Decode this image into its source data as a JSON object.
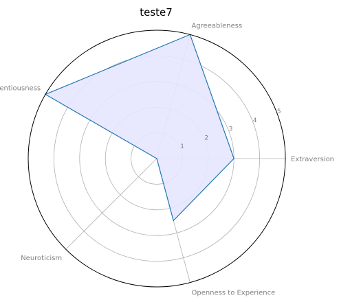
{
  "chart_data": {
    "type": "radar",
    "title": "teste7",
    "axes": [
      "Extraversion",
      "Agreeableness",
      "Conscientiousness",
      "Neuroticism",
      "Openness to Experience"
    ],
    "axis_angles_deg": [
      0,
      75,
      150,
      225,
      285
    ],
    "r_ticks": [
      1,
      2,
      3,
      4,
      5
    ],
    "rlim": [
      0,
      5
    ],
    "grid": true,
    "series": [
      {
        "values": [
          3,
          5,
          5,
          0,
          2.5
        ]
      }
    ],
    "colors": {
      "line": "#1f77b4",
      "fill": "#e6e6ff",
      "grid": "#b0b0b0",
      "frame": "#000000"
    }
  }
}
